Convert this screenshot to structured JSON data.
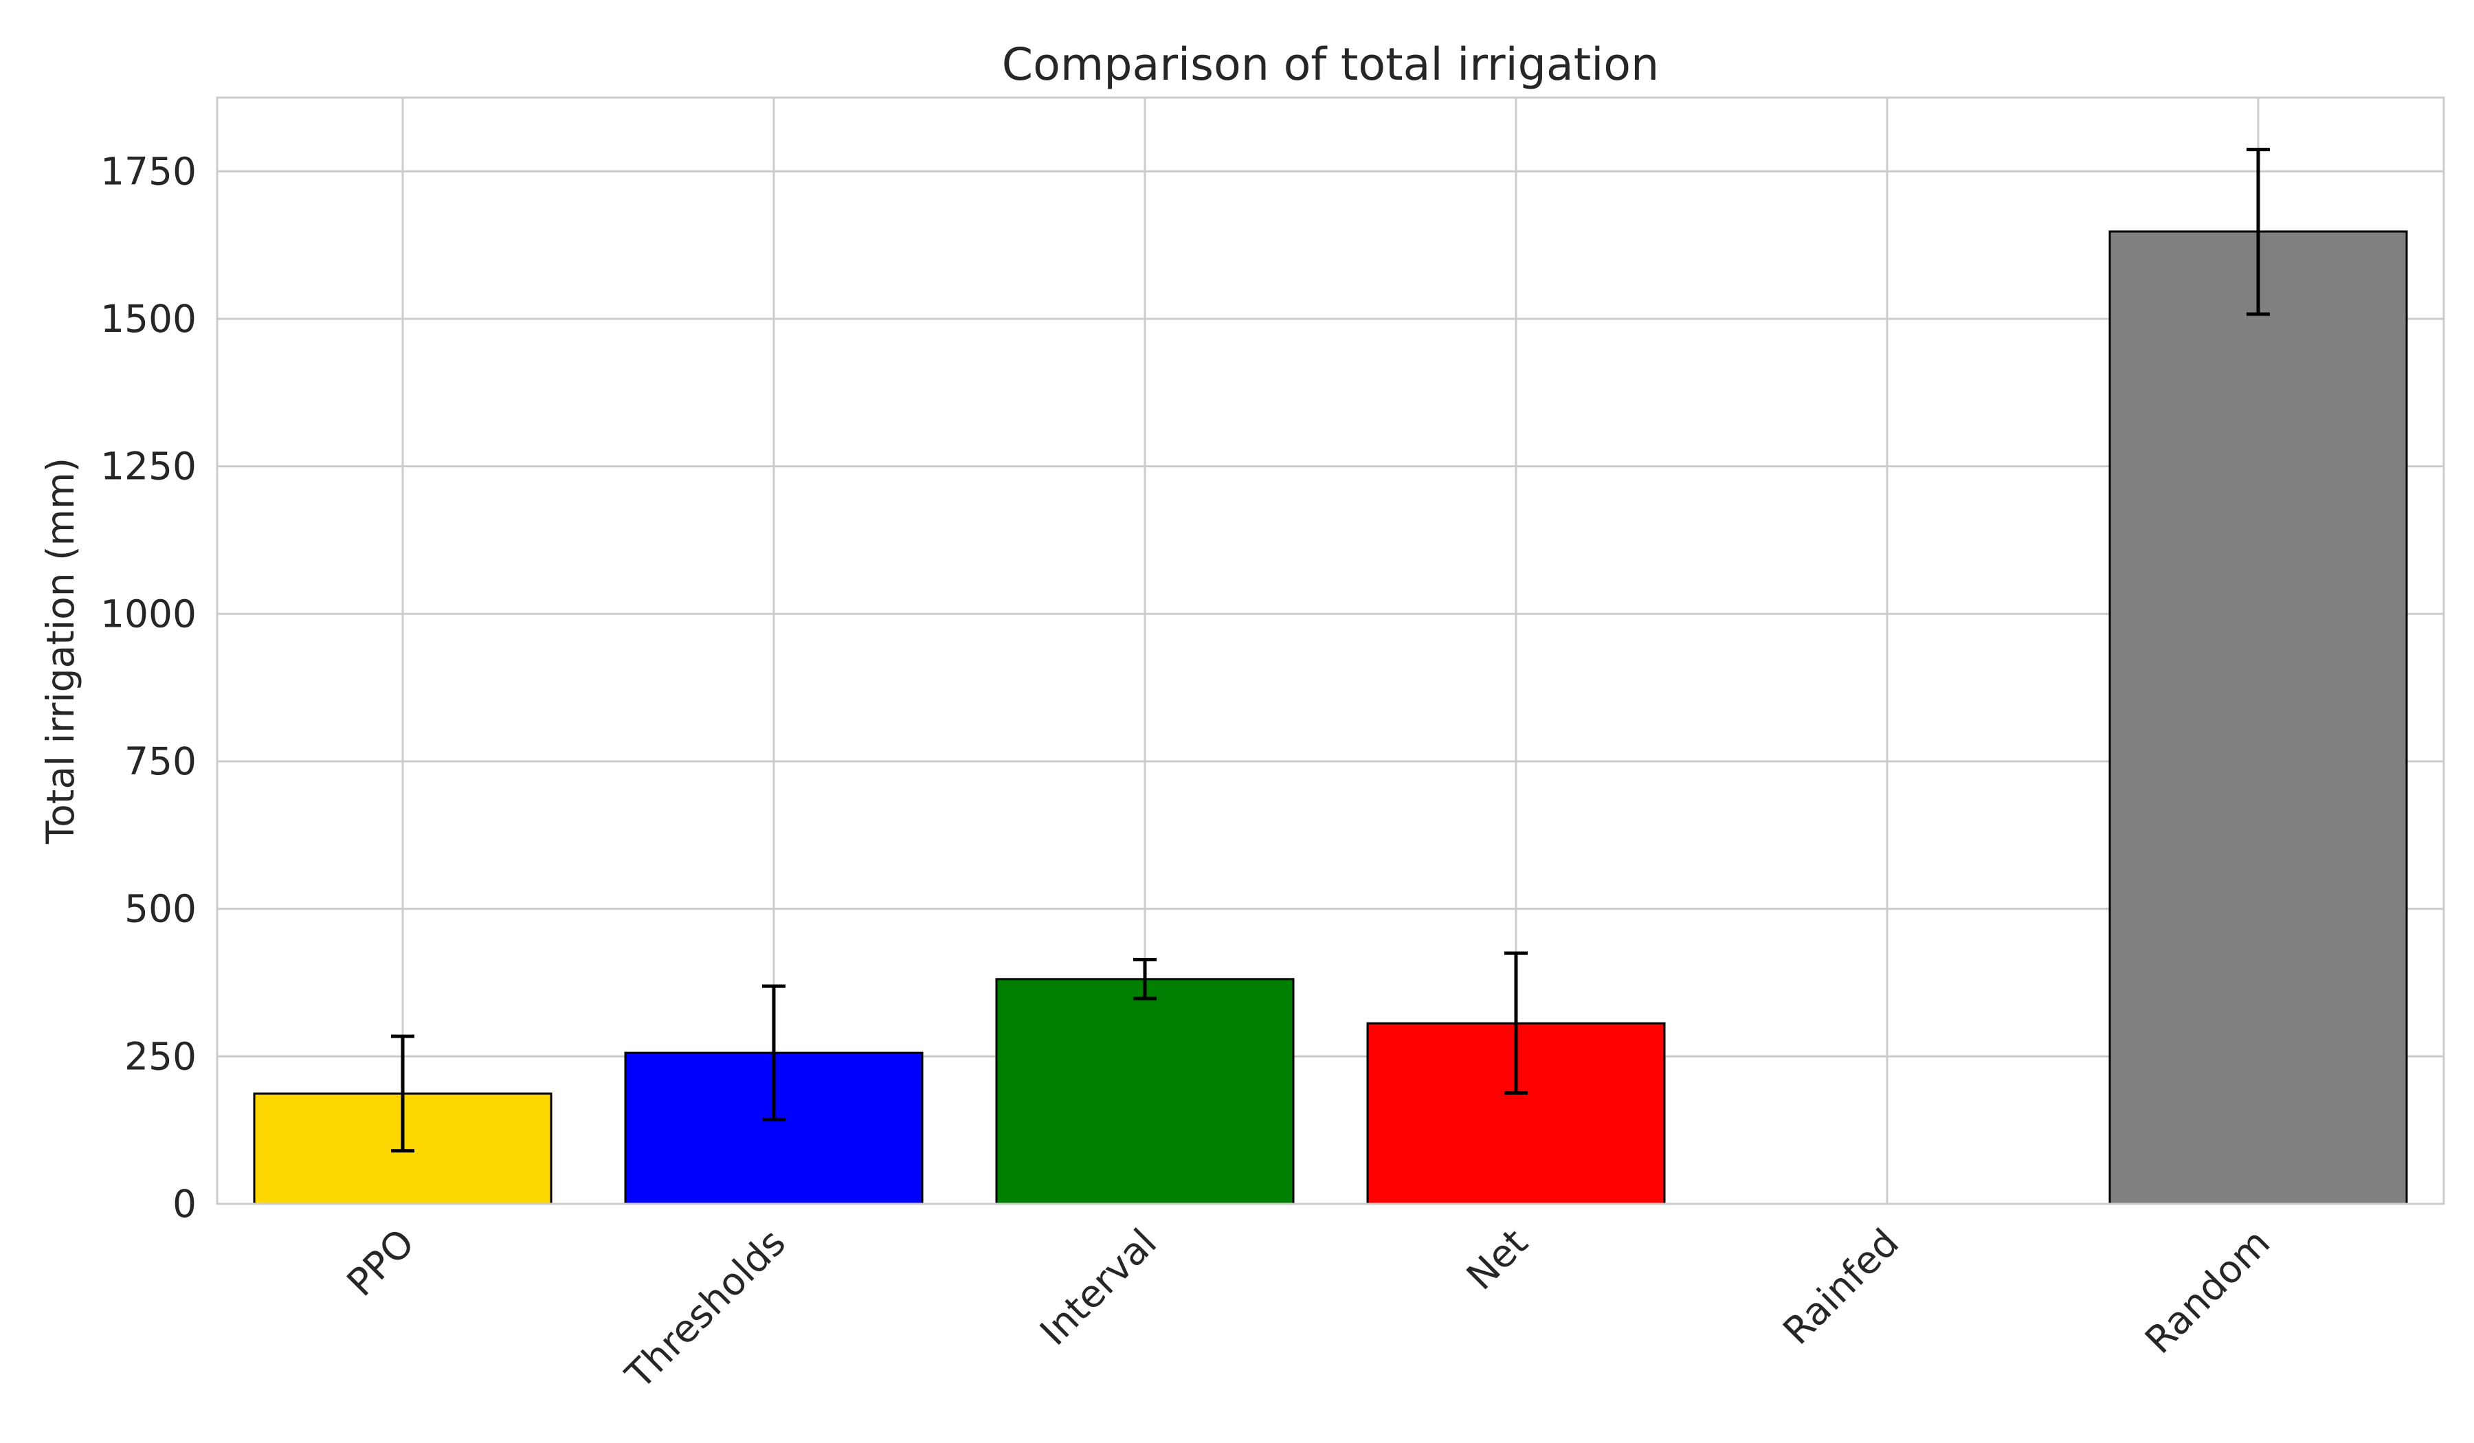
{
  "chart_data": {
    "type": "bar",
    "title": "Comparison of total irrigation",
    "xlabel": "",
    "ylabel": "Total irrigation (mm)",
    "categories": [
      "PPO",
      "Thresholds",
      "Interval",
      "Net",
      "Rainfed",
      "Random"
    ],
    "values": [
      187,
      256,
      381,
      306,
      0,
      1648
    ],
    "error_low": [
      90,
      143,
      348,
      188,
      0,
      1508
    ],
    "error_high": [
      284,
      369,
      414,
      425,
      0,
      1787
    ],
    "colors": [
      "#FFD700",
      "#0000FF",
      "#008000",
      "#FF0000",
      "#808080",
      "#808080"
    ],
    "ylim": [
      0,
      1875
    ],
    "yticks": [
      0,
      250,
      500,
      750,
      1000,
      1250,
      1500,
      1750
    ],
    "grid": true,
    "legend": "none"
  }
}
